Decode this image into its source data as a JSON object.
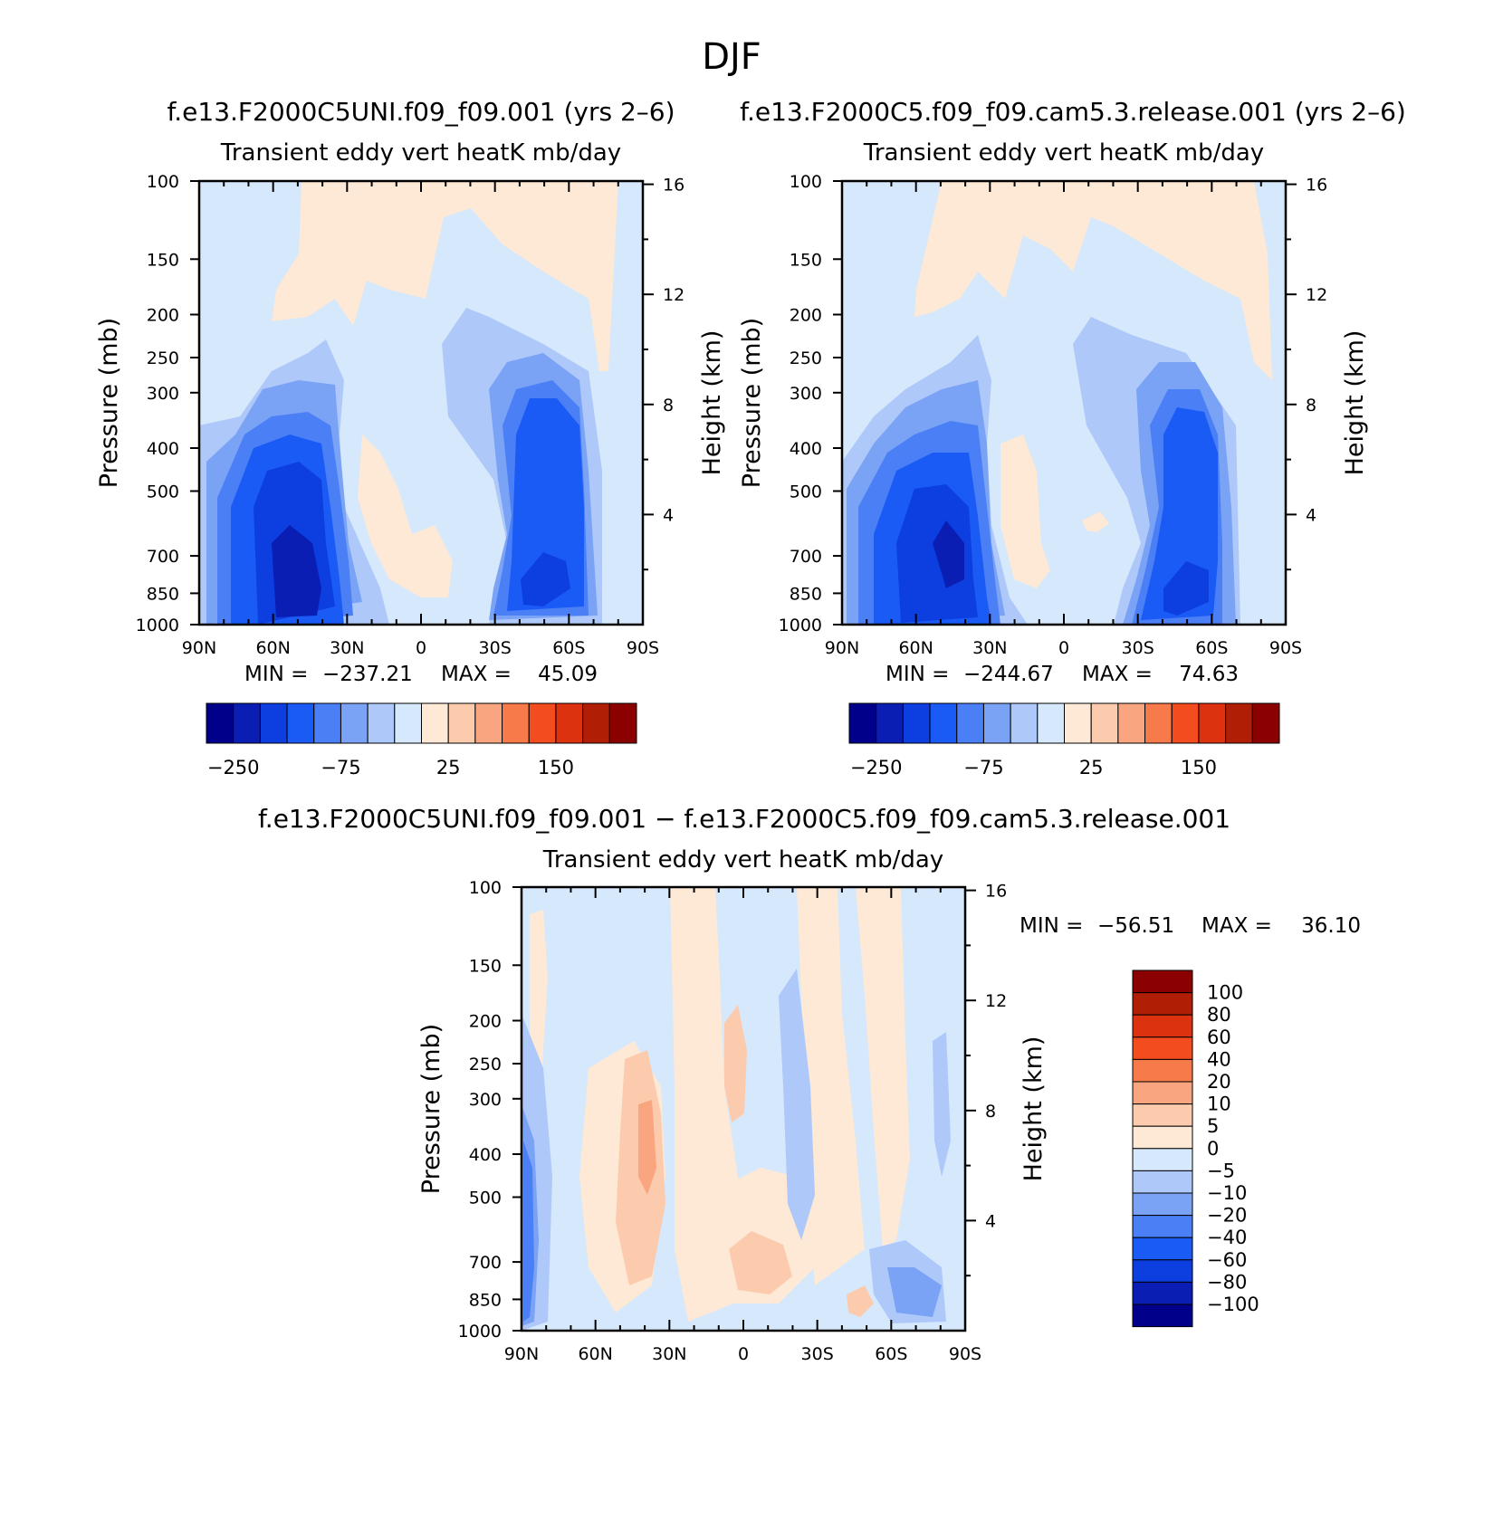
{
  "figure": {
    "title": "DJF",
    "panels": [
      {
        "id": "test",
        "case_label": "f.e13.F2000C5UNI.f09_f09.001 (yrs 2–6)",
        "subtitle": "Transient eddy vert heatK mb/day",
        "ylabel_left": "Pressure (mb)",
        "ylabel_right": "Height (km)",
        "min_label": "MIN =",
        "min_value": "−237.21",
        "max_label": "MAX =",
        "max_value": "45.09"
      },
      {
        "id": "control",
        "case_label": "f.e13.F2000C5.f09_f09.cam5.3.release.001 (yrs 2–6)",
        "subtitle": "Transient eddy vert heatK mb/day",
        "ylabel_left": "Pressure (mb)",
        "ylabel_right": "Height (km)",
        "min_label": "MIN =",
        "min_value": "−244.67",
        "max_label": "MAX =",
        "max_value": "74.63"
      },
      {
        "id": "difference",
        "case_label": "f.e13.F2000C5UNI.f09_f09.001 − f.e13.F2000C5.f09_f09.cam5.3.release.001",
        "subtitle": "Transient eddy vert heatK mb/day",
        "ylabel_left": "Pressure (mb)",
        "ylabel_right": "Height (km)",
        "min_label": "MIN =",
        "min_value": "−56.51",
        "max_label": "MAX =",
        "max_value": "36.10"
      }
    ],
    "colorbar_top": {
      "colors": [
        "#00008b",
        "#0a1eb4",
        "#0c3ee0",
        "#1b5bf5",
        "#4a7ff5",
        "#7aa2f5",
        "#aec8fa",
        "#d6e8fc",
        "#fde9d6",
        "#fccbae",
        "#f9a57f",
        "#f77a4a",
        "#f24c1f",
        "#dd320f",
        "#b01e05",
        "#8b0000"
      ],
      "labels": [
        "−250",
        "−75",
        "25",
        "150"
      ]
    },
    "colorbar_diff": {
      "colors": [
        "#00008b",
        "#0a1eb4",
        "#0c3ee0",
        "#1b5bf5",
        "#4a7ff5",
        "#7aa2f5",
        "#aec8fa",
        "#d6e8fc",
        "#fde9d6",
        "#fccbae",
        "#f9a57f",
        "#f77a4a",
        "#f24c1f",
        "#dd320f",
        "#b01e05",
        "#8b0000"
      ],
      "labels": [
        "100",
        "80",
        "60",
        "40",
        "20",
        "10",
        "5",
        "0",
        "−5",
        "−10",
        "−20",
        "−40",
        "−60",
        "−80",
        "−100"
      ]
    }
  },
  "chart_data": [
    {
      "type": "heatmap",
      "title": "Transient eddy vert heatK mb/day",
      "case": "f.e13.F2000C5UNI.f09_f09.001 (yrs 2–6)",
      "xlabel": "",
      "ylabel": "Pressure (mb)",
      "ylabel_right": "Height (km)",
      "x_ticks": [
        "90N",
        "60N",
        "30N",
        "0",
        "30S",
        "60S",
        "90S"
      ],
      "y_ticks": [
        "100",
        "150",
        "200",
        "250",
        "300",
        "400",
        "500",
        "700",
        "850",
        "1000"
      ],
      "y_right_ticks": [
        "16",
        "12",
        "8",
        "4"
      ],
      "xlim": [
        90,
        -90
      ],
      "ylim": [
        1000,
        100
      ],
      "min": -237.21,
      "max": 45.09,
      "contour_levels": [
        -250,
        -75,
        25,
        150
      ]
    },
    {
      "type": "heatmap",
      "title": "Transient eddy vert heatK mb/day",
      "case": "f.e13.F2000C5.f09_f09.cam5.3.release.001 (yrs 2–6)",
      "xlabel": "",
      "ylabel": "Pressure (mb)",
      "ylabel_right": "Height (km)",
      "x_ticks": [
        "90N",
        "60N",
        "30N",
        "0",
        "30S",
        "60S",
        "90S"
      ],
      "y_ticks": [
        "100",
        "150",
        "200",
        "250",
        "300",
        "400",
        "500",
        "700",
        "850",
        "1000"
      ],
      "y_right_ticks": [
        "16",
        "12",
        "8",
        "4"
      ],
      "xlim": [
        90,
        -90
      ],
      "ylim": [
        1000,
        100
      ],
      "min": -244.67,
      "max": 74.63,
      "contour_levels": [
        -250,
        -75,
        25,
        150
      ]
    },
    {
      "type": "heatmap",
      "title": "Transient eddy vert heatK mb/day",
      "case": "f.e13.F2000C5UNI.f09_f09.001 − f.e13.F2000C5.f09_f09.cam5.3.release.001",
      "xlabel": "",
      "ylabel": "Pressure (mb)",
      "ylabel_right": "Height (km)",
      "x_ticks": [
        "90N",
        "60N",
        "30N",
        "0",
        "30S",
        "60S",
        "90S"
      ],
      "y_ticks": [
        "100",
        "150",
        "200",
        "250",
        "300",
        "400",
        "500",
        "700",
        "850",
        "1000"
      ],
      "y_right_ticks": [
        "16",
        "12",
        "8",
        "4"
      ],
      "xlim": [
        90,
        -90
      ],
      "ylim": [
        1000,
        100
      ],
      "min": -56.51,
      "max": 36.1,
      "contour_levels": [
        -100,
        -80,
        -60,
        -40,
        -20,
        -10,
        -5,
        0,
        5,
        10,
        20,
        40,
        60,
        80,
        100
      ]
    }
  ]
}
